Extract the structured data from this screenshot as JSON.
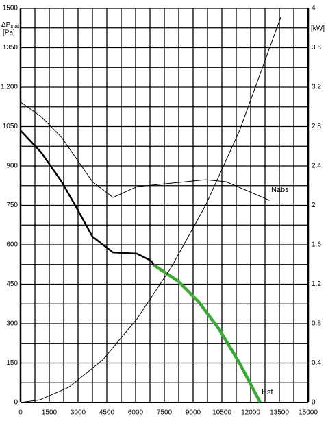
{
  "chart_data": {
    "type": "line",
    "y_label": "ΔP",
    "y_label_sub": "stat",
    "y_unit": "[Pa]",
    "y2_unit": "[kW]",
    "xlim": [
      0,
      15000
    ],
    "xticks": [
      0,
      1500,
      3000,
      4500,
      6000,
      7500,
      9000,
      10500,
      12000,
      13500,
      15000
    ],
    "ylim": [
      0,
      1500
    ],
    "yticks": [
      0,
      150,
      300,
      450,
      600,
      750,
      900,
      1050,
      {
        "value": 1200,
        "label": "1.200"
      },
      1350,
      1500
    ],
    "y2lim": [
      0,
      4
    ],
    "y2ticks": [
      0,
      0.4,
      0.8,
      1.2,
      1.6,
      2,
      2.4,
      2.8,
      3.2,
      3.6,
      4
    ],
    "grid": true,
    "series": [
      {
        "color": "#000000",
        "linewidth": 2.5,
        "x": [
          0,
          1071,
          2143,
          2857,
          3750,
          4821,
          6071,
          6786,
          6964
        ],
        "values": [
          1035,
          952,
          840,
          749,
          631,
          571,
          566,
          540,
          522
        ]
      },
      {
        "name": "Hst",
        "color": "#3aaa35",
        "linewidth": 4.5,
        "x": [
          6964,
          8214,
          9286,
          10357,
          11429,
          12500
        ],
        "values": [
          522,
          462,
          383,
          279,
          149,
          0
        ]
      },
      {
        "name": "Nabs",
        "color": "#000000",
        "linewidth": 1,
        "axis": "y2",
        "x": [
          0,
          1071,
          2143,
          3750,
          4821,
          6071,
          7607,
          9643,
          10714,
          13000
        ],
        "values": [
          3.05,
          2.9,
          2.69,
          2.24,
          2.08,
          2.19,
          2.22,
          2.26,
          2.24,
          2.05
        ]
      },
      {
        "color": "#000000",
        "linewidth": 1,
        "x": [
          0,
          1000,
          2500,
          4286,
          6071,
          7857,
          9643,
          11429,
          13571
        ],
        "values": [
          0,
          10,
          57,
          162,
          318,
          514,
          749,
          1036,
          1466
        ]
      }
    ]
  }
}
